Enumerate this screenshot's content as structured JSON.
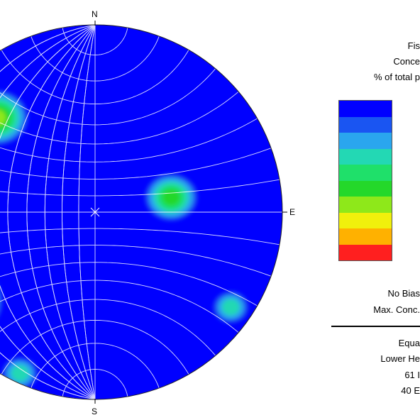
{
  "chart_data": {
    "type": "stereonet-contour",
    "directions": {
      "north": "N",
      "east": "E",
      "south": "S"
    },
    "legend": {
      "title_lines": [
        "Fis",
        "Conce",
        "% of total p"
      ],
      "colors": [
        "#0000ff",
        "#1a55f2",
        "#2aa6ee",
        "#23d8b4",
        "#1fe06a",
        "#24d82a",
        "#8ee81a",
        "#f0f00c",
        "#ffb100",
        "#ff1f1f"
      ]
    },
    "contour_peaks": [
      {
        "trend_deg": 314,
        "plunge_deg": 18,
        "level": 6
      },
      {
        "trend_deg": 79,
        "plunge_deg": 45,
        "level": 5
      },
      {
        "trend_deg": 237,
        "plunge_deg": 8,
        "level": 9
      },
      {
        "trend_deg": 125,
        "plunge_deg": 7,
        "level": 3
      },
      {
        "trend_deg": 205,
        "plunge_deg": 3,
        "level": 3
      }
    ],
    "info": {
      "bias_line": "No Bias",
      "max_conc_line": "Max. Conc.",
      "projection_line": "Equa",
      "hemisphere_line": "Lower He",
      "count_line_1": "61 I",
      "count_line_2": "40 E"
    },
    "grid": true
  }
}
